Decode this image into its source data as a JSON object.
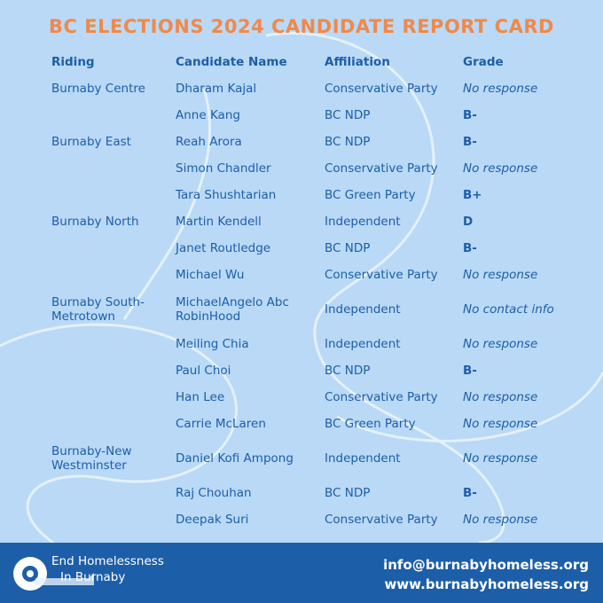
{
  "header": {
    "title": "BC ELECTIONS 2024 CANDIDATE REPORT CARD"
  },
  "table": {
    "columns": [
      "Riding",
      "Candidate Name",
      "Affiliation",
      "Grade"
    ],
    "ridings": [
      {
        "name": "Burnaby Centre",
        "candidates": [
          {
            "name": "Dharam Kajal",
            "affiliation": "Conservative Party",
            "grade": "No response"
          },
          {
            "name": "Anne Kang",
            "affiliation": "BC NDP",
            "grade": "B-"
          }
        ]
      },
      {
        "name": "Burnaby East",
        "candidates": [
          {
            "name": "Reah Arora",
            "affiliation": "BC NDP",
            "grade": "B-"
          },
          {
            "name": "Simon Chandler",
            "affiliation": "Conservative Party",
            "grade": "No response"
          },
          {
            "name": "Tara Shushtarian",
            "affiliation": "BC Green Party",
            "grade": "B+"
          }
        ]
      },
      {
        "name": "Burnaby North",
        "candidates": [
          {
            "name": "Martin Kendell",
            "affiliation": "Independent",
            "grade": "D"
          },
          {
            "name": "Janet Routledge",
            "affiliation": "BC NDP",
            "grade": "B-"
          },
          {
            "name": "Michael Wu",
            "affiliation": "Conservative Party",
            "grade": "No response"
          }
        ]
      },
      {
        "name": "Burnaby South-Metrotown",
        "candidates": [
          {
            "name": "MichaelAngelo Abc RobinHood",
            "affiliation": "Independent",
            "grade": "No contact info"
          },
          {
            "name": "Meiling Chia",
            "affiliation": "Independent",
            "grade": "No response"
          },
          {
            "name": "Paul Choi",
            "affiliation": "BC NDP",
            "grade": "B-"
          },
          {
            "name": "Han Lee",
            "affiliation": "Conservative Party",
            "grade": "No response"
          },
          {
            "name": "Carrie McLaren",
            "affiliation": "BC Green Party",
            "grade": "No response"
          }
        ]
      },
      {
        "name": "Burnaby-New Westminster",
        "candidates": [
          {
            "name": "Daniel Kofi Ampong",
            "affiliation": "Independent",
            "grade": "No response"
          },
          {
            "name": "Raj Chouhan",
            "affiliation": "BC NDP",
            "grade": "B-"
          },
          {
            "name": "Deepak Suri",
            "affiliation": "Conservative Party",
            "grade": "No response"
          }
        ]
      }
    ]
  },
  "footer": {
    "org_line1": "End Homelessness",
    "org_line2": "In Burnaby",
    "email": "info@burnabyhomeless.org",
    "website": "www.burnabyhomeless.org"
  }
}
